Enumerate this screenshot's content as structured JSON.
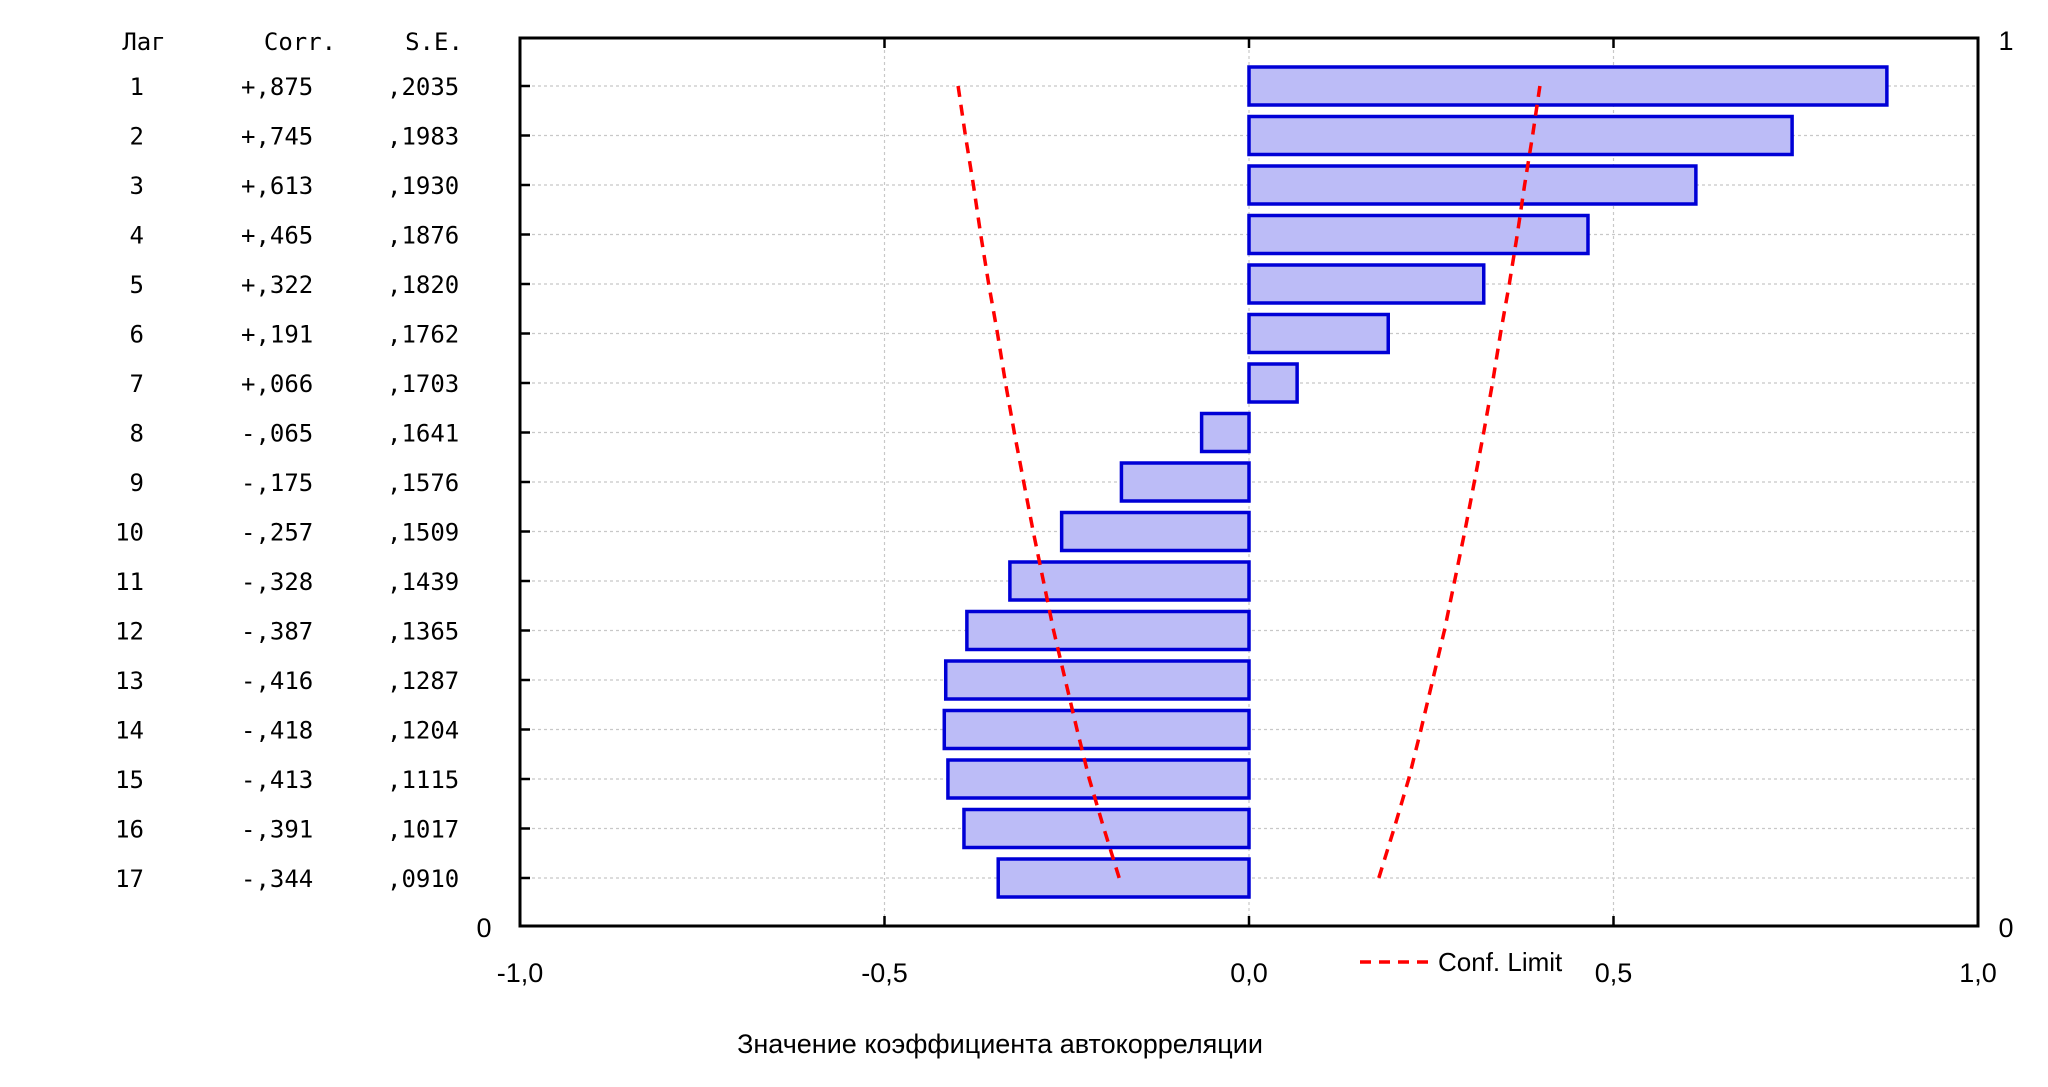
{
  "chart_data": {
    "type": "bar",
    "orientation": "horizontal",
    "columns": [
      "Лаг",
      "Corr.",
      "S.E."
    ],
    "rows": [
      {
        "lag": "1",
        "corr": "+,875",
        "se": ",2035"
      },
      {
        "lag": "2",
        "corr": "+,745",
        "se": ",1983"
      },
      {
        "lag": "3",
        "corr": "+,613",
        "se": ",1930"
      },
      {
        "lag": "4",
        "corr": "+,465",
        "se": ",1876"
      },
      {
        "lag": "5",
        "corr": "+,322",
        "se": ",1820"
      },
      {
        "lag": "6",
        "corr": "+,191",
        "se": ",1762"
      },
      {
        "lag": "7",
        "corr": "+,066",
        "se": ",1703"
      },
      {
        "lag": "8",
        "corr": "-,065",
        "se": ",1641"
      },
      {
        "lag": "9",
        "corr": "-,175",
        "se": ",1576"
      },
      {
        "lag": "10",
        "corr": "-,257",
        "se": ",1509"
      },
      {
        "lag": "11",
        "corr": "-,328",
        "se": ",1439"
      },
      {
        "lag": "12",
        "corr": "-,387",
        "se": ",1365"
      },
      {
        "lag": "13",
        "corr": "-,416",
        "se": ",1287"
      },
      {
        "lag": "14",
        "corr": "-,418",
        "se": ",1204"
      },
      {
        "lag": "15",
        "corr": "-,413",
        "se": ",1115"
      },
      {
        "lag": "16",
        "corr": "-,391",
        "se": ",1017"
      },
      {
        "lag": "17",
        "corr": "-,344",
        "se": ",0910"
      }
    ],
    "values": [
      0.875,
      0.745,
      0.613,
      0.465,
      0.322,
      0.191,
      0.066,
      -0.065,
      -0.175,
      -0.257,
      -0.328,
      -0.387,
      -0.416,
      -0.418,
      -0.413,
      -0.391,
      -0.344
    ],
    "conf_limit": [
      0.399,
      0.389,
      0.378,
      0.368,
      0.357,
      0.345,
      0.334,
      0.322,
      0.309,
      0.296,
      0.282,
      0.268,
      0.252,
      0.236,
      0.219,
      0.199,
      0.178
    ],
    "xlim": [
      -1.0,
      1.0
    ],
    "x_ticks": [
      "-1,0",
      "-0,5",
      "0,0",
      "0,5",
      "1,0"
    ],
    "x_tick_values": [
      -1.0,
      -0.5,
      0.0,
      0.5,
      1.0
    ],
    "xlabel": "Значение коэффициента автокорреляции",
    "right_axis_ticks": {
      "top": "1",
      "bottom": "0"
    },
    "left_axis_bottom_label": "0",
    "legend": {
      "label": "Conf. Limit",
      "style": "red-dashed-line",
      "placement": "bottom"
    },
    "grid": true,
    "colors": {
      "bar_fill": "#bcbcf7",
      "bar_stroke": "#0000d6",
      "conf": "#ff0000"
    }
  }
}
